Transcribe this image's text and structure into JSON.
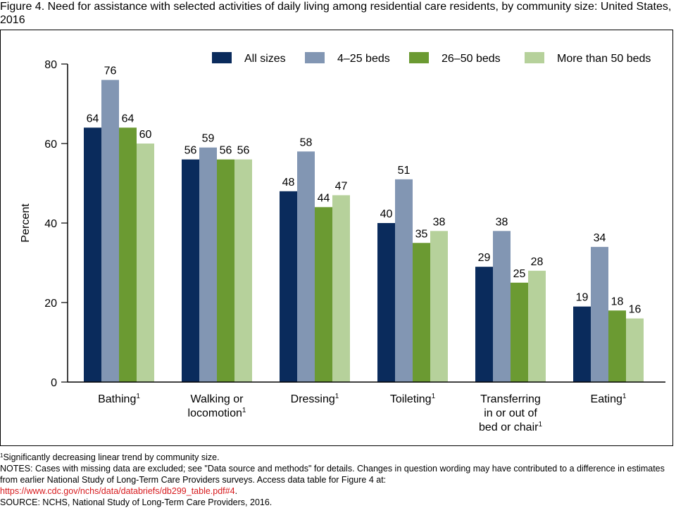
{
  "figure": {
    "title": "Figure 4. Need for assistance with selected activities of daily living among residential care residents, by community size: United States, 2016"
  },
  "chart_data": {
    "type": "bar",
    "title": "",
    "xlabel": "",
    "ylabel": "Percent",
    "ylim": [
      0,
      80
    ],
    "yticks": [
      0,
      20,
      40,
      60,
      80
    ],
    "grid": false,
    "legend_position": "top",
    "categories": [
      {
        "lines": [
          "Bathing"
        ],
        "sup": "1"
      },
      {
        "lines": [
          "Walking or",
          "locomotion"
        ],
        "sup": "1"
      },
      {
        "lines": [
          "Dressing"
        ],
        "sup": "1"
      },
      {
        "lines": [
          "Toileting"
        ],
        "sup": "1"
      },
      {
        "lines": [
          "Transferring",
          "in or out of",
          "bed or chair"
        ],
        "sup": "1"
      },
      {
        "lines": [
          "Eating"
        ],
        "sup": "1"
      }
    ],
    "series": [
      {
        "name": "All sizes",
        "color": "#0a2b5c",
        "values": [
          64,
          56,
          48,
          40,
          29,
          19
        ]
      },
      {
        "name": "4–25 beds",
        "color": "#8296b3",
        "values": [
          76,
          59,
          58,
          51,
          38,
          34
        ]
      },
      {
        "name": "26–50 beds",
        "color": "#6b9a32",
        "values": [
          64,
          56,
          44,
          35,
          25,
          18
        ]
      },
      {
        "name": "More than 50 beds",
        "color": "#b6d19b",
        "values": [
          60,
          56,
          47,
          38,
          28,
          16
        ]
      }
    ]
  },
  "footnotes": {
    "trend_sup": "1",
    "trend_text": "Significantly decreasing linear trend by community size.",
    "notes_text": "NOTES: Cases with missing data are excluded; see \"Data source and methods\" for details. Changes in question wording may have contributed to a difference in estimates from earlier National Study of Long-Term Care Providers surveys. Access data table for Figure 4 at:",
    "link": "https://www.cdc.gov/nchs/data/databriefs/db299_table.pdf#4",
    "link_suffix": ".",
    "source": "SOURCE: NCHS, National Study of Long-Term Care Providers, 2016."
  }
}
